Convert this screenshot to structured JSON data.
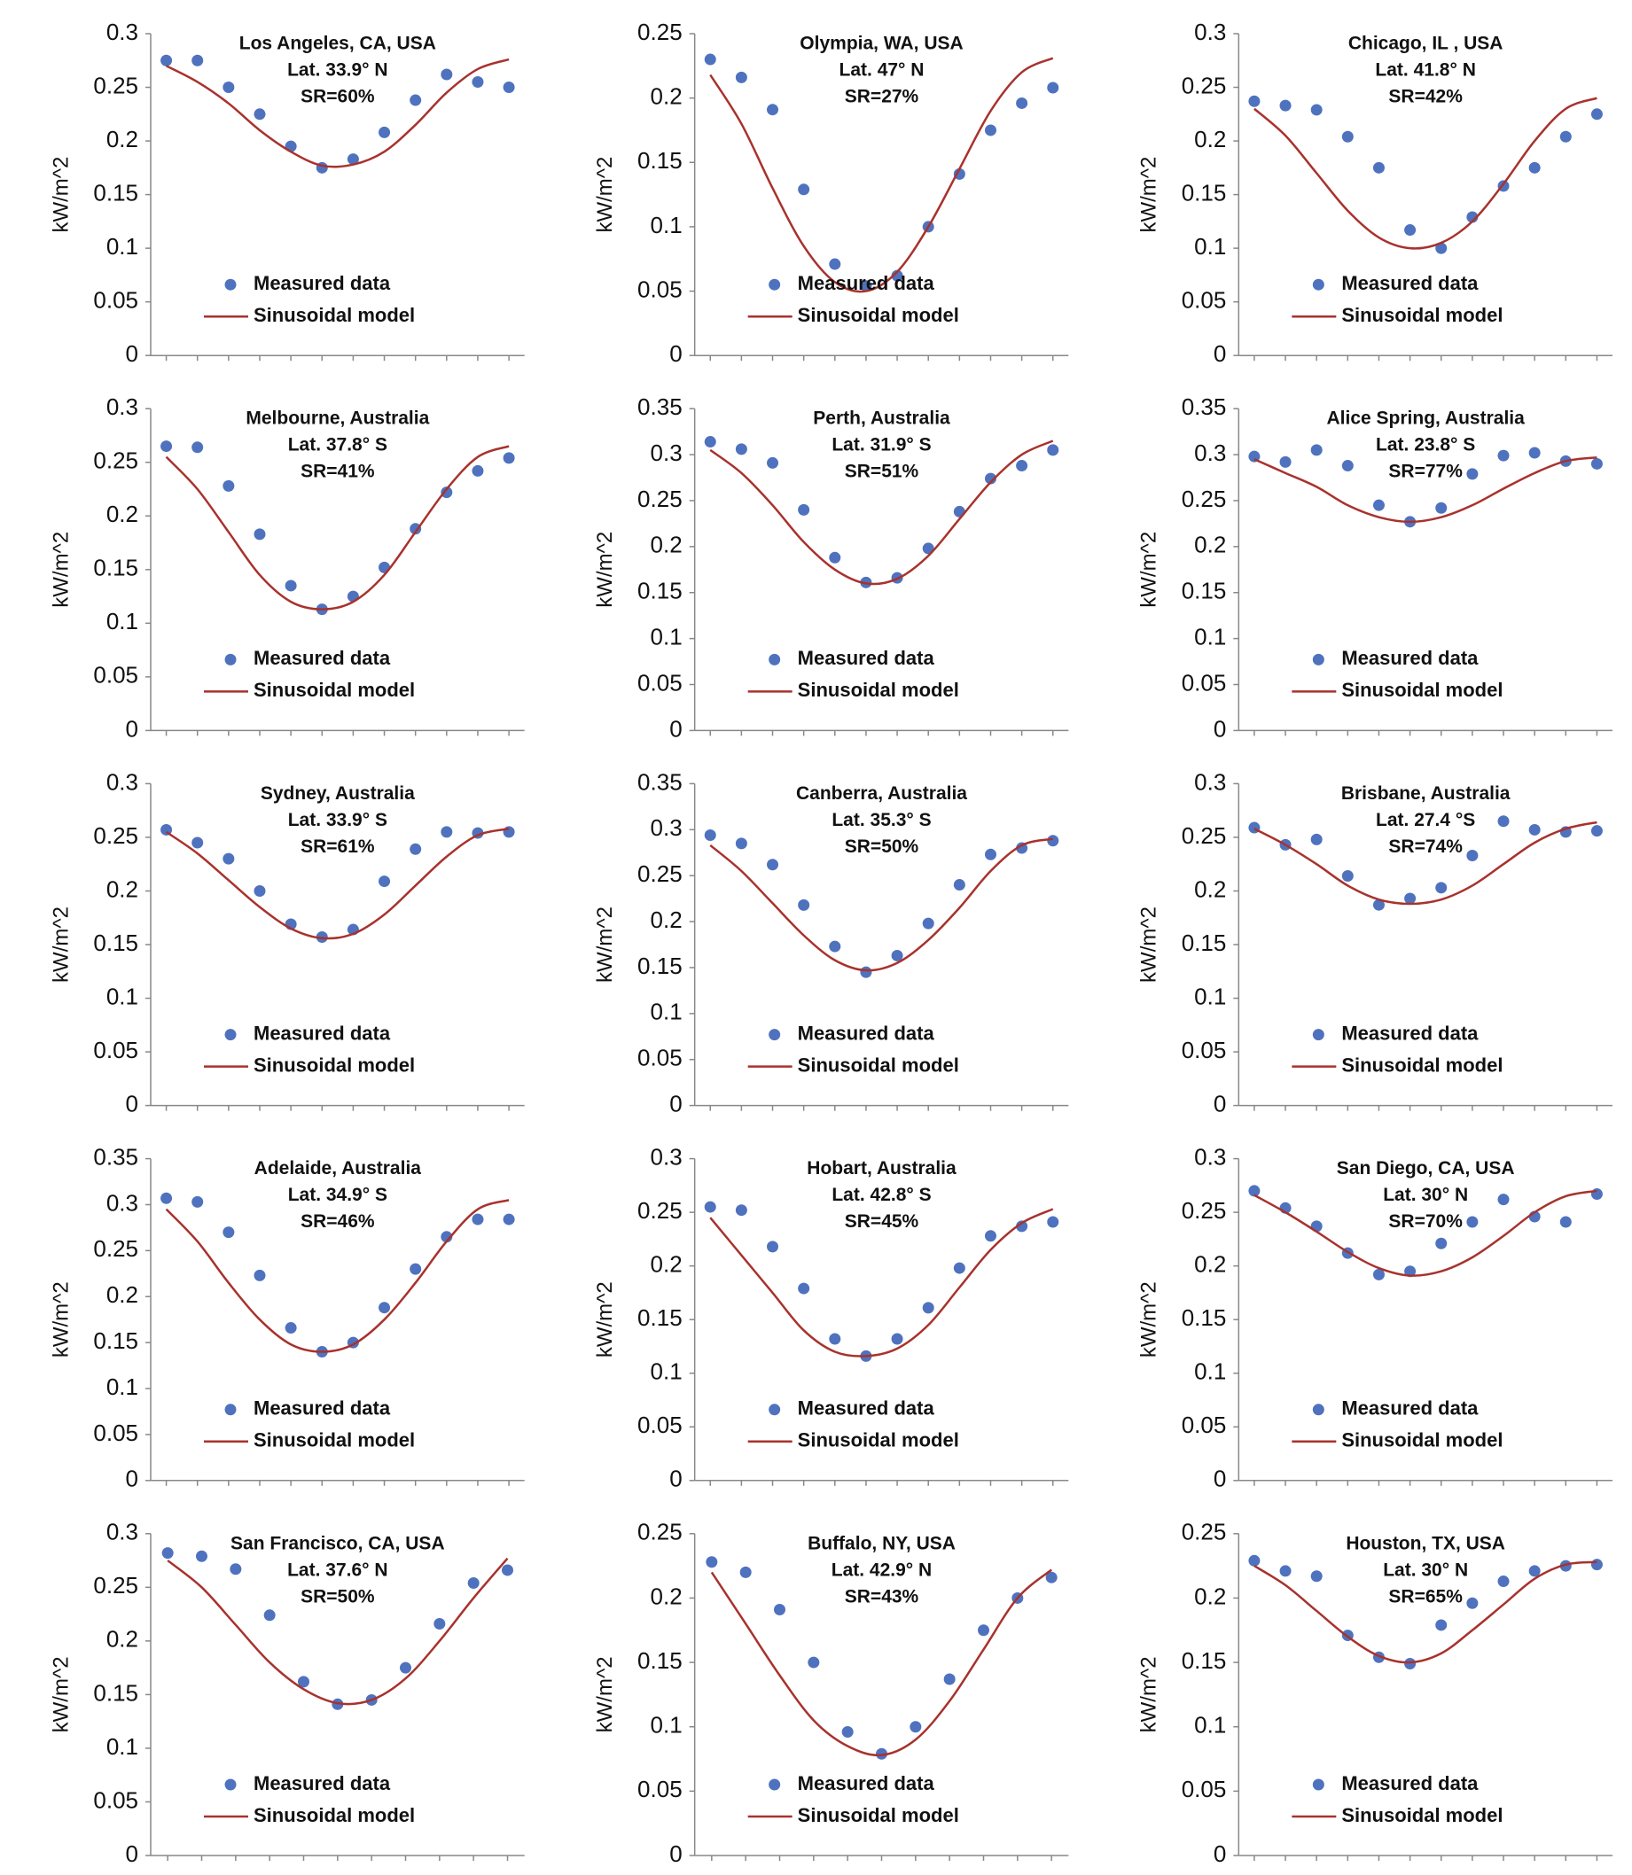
{
  "chart_data": [
    {
      "type": "combo",
      "title": "Los Angeles, CA, USA",
      "annotations": [
        "Lat. 33.9° N",
        "SR=60%"
      ],
      "ylabel": "kW/m^2",
      "categories": [
        null,
        null,
        null,
        null,
        null,
        null,
        null,
        null,
        null,
        null,
        null,
        null
      ],
      "ylim": [
        0,
        0.3
      ],
      "yticks": [
        0,
        0.05,
        0.1,
        0.15,
        0.2,
        0.25,
        0.3
      ],
      "series": [
        {
          "name": "Measured data",
          "type": "scatter",
          "color": "#4f72be",
          "values": [
            0.275,
            0.275,
            0.25,
            0.225,
            0.195,
            0.175,
            0.183,
            0.208,
            0.238,
            0.262,
            0.255,
            0.25
          ]
        },
        {
          "name": "Sinusoidal model",
          "type": "line",
          "color": "#a8322d",
          "values": [
            0.27,
            0.255,
            0.235,
            0.21,
            0.19,
            0.177,
            0.178,
            0.19,
            0.215,
            0.245,
            0.267,
            0.276
          ]
        }
      ]
    },
    {
      "type": "combo",
      "title": "Olympia, WA, USA",
      "annotations": [
        "Lat. 47° N",
        "SR=27%"
      ],
      "ylabel": "kW/m^2",
      "categories": [
        null,
        null,
        null,
        null,
        null,
        null,
        null,
        null,
        null,
        null,
        null,
        null
      ],
      "ylim": [
        0,
        0.25
      ],
      "yticks": [
        0,
        0.05,
        0.1,
        0.15,
        0.2,
        0.25
      ],
      "series": [
        {
          "name": "Measured data",
          "type": "scatter",
          "color": "#4f72be",
          "values": [
            0.23,
            0.216,
            0.191,
            0.129,
            0.071,
            0.054,
            0.062,
            0.1,
            0.141,
            0.175,
            0.196,
            0.208
          ]
        },
        {
          "name": "Sinusoidal model",
          "type": "line",
          "color": "#a8322d",
          "values": [
            0.218,
            0.18,
            0.13,
            0.085,
            0.057,
            0.05,
            0.065,
            0.1,
            0.145,
            0.19,
            0.22,
            0.231
          ]
        }
      ]
    },
    {
      "type": "combo",
      "title": "Chicago, IL , USA",
      "annotations": [
        "Lat. 41.8° N",
        "SR=42%"
      ],
      "ylabel": "kW/m^2",
      "categories": [
        null,
        null,
        null,
        null,
        null,
        null,
        null,
        null,
        null,
        null,
        null,
        null
      ],
      "ylim": [
        0,
        0.3
      ],
      "yticks": [
        0,
        0.05,
        0.1,
        0.15,
        0.2,
        0.25,
        0.3
      ],
      "series": [
        {
          "name": "Measured data",
          "type": "scatter",
          "color": "#4f72be",
          "values": [
            0.237,
            0.233,
            0.229,
            0.204,
            0.175,
            0.117,
            0.1,
            0.129,
            0.158,
            0.175,
            0.204,
            0.225
          ]
        },
        {
          "name": "Sinusoidal model",
          "type": "line",
          "color": "#a8322d",
          "values": [
            0.23,
            0.205,
            0.17,
            0.135,
            0.11,
            0.1,
            0.105,
            0.125,
            0.16,
            0.2,
            0.23,
            0.24
          ]
        }
      ]
    },
    {
      "type": "combo",
      "title": "Melbourne, Australia",
      "annotations": [
        "Lat. 37.8° S",
        "SR=41%"
      ],
      "ylabel": "kW/m^2",
      "categories": [
        null,
        null,
        null,
        null,
        null,
        null,
        null,
        null,
        null,
        null,
        null,
        null
      ],
      "ylim": [
        0,
        0.3
      ],
      "yticks": [
        0,
        0.05,
        0.1,
        0.15,
        0.2,
        0.25,
        0.3
      ],
      "series": [
        {
          "name": "Measured data",
          "type": "scatter",
          "color": "#4f72be",
          "values": [
            0.265,
            0.264,
            0.228,
            0.183,
            0.135,
            0.113,
            0.125,
            0.152,
            0.188,
            0.222,
            0.242,
            0.254
          ]
        },
        {
          "name": "Sinusoidal model",
          "type": "line",
          "color": "#a8322d",
          "values": [
            0.255,
            0.225,
            0.185,
            0.145,
            0.12,
            0.113,
            0.12,
            0.145,
            0.185,
            0.225,
            0.255,
            0.265
          ]
        }
      ]
    },
    {
      "type": "combo",
      "title": "Perth, Australia",
      "annotations": [
        "Lat. 31.9° S",
        "SR=51%"
      ],
      "ylabel": "kW/m^2",
      "categories": [
        null,
        null,
        null,
        null,
        null,
        null,
        null,
        null,
        null,
        null,
        null,
        null
      ],
      "ylim": [
        0,
        0.35
      ],
      "yticks": [
        0,
        0.05,
        0.1,
        0.15,
        0.2,
        0.25,
        0.3,
        0.35
      ],
      "series": [
        {
          "name": "Measured data",
          "type": "scatter",
          "color": "#4f72be",
          "values": [
            0.314,
            0.306,
            0.291,
            0.24,
            0.188,
            0.161,
            0.166,
            0.198,
            0.238,
            0.274,
            0.288,
            0.305
          ]
        },
        {
          "name": "Sinusoidal model",
          "type": "line",
          "color": "#a8322d",
          "values": [
            0.305,
            0.28,
            0.245,
            0.205,
            0.175,
            0.16,
            0.165,
            0.19,
            0.23,
            0.27,
            0.3,
            0.315
          ]
        }
      ]
    },
    {
      "type": "combo",
      "title": "Alice Spring, Australia",
      "annotations": [
        "Lat. 23.8° S",
        "SR=77%"
      ],
      "ylabel": "kW/m^2",
      "categories": [
        null,
        null,
        null,
        null,
        null,
        null,
        null,
        null,
        null,
        null,
        null,
        null
      ],
      "ylim": [
        0,
        0.35
      ],
      "yticks": [
        0,
        0.05,
        0.1,
        0.15,
        0.2,
        0.25,
        0.3,
        0.35
      ],
      "series": [
        {
          "name": "Measured data",
          "type": "scatter",
          "color": "#4f72be",
          "values": [
            0.298,
            0.292,
            0.305,
            0.288,
            0.245,
            0.227,
            0.242,
            0.279,
            0.299,
            0.302,
            0.293,
            0.29
          ]
        },
        {
          "name": "Sinusoidal model",
          "type": "line",
          "color": "#a8322d",
          "values": [
            0.295,
            0.28,
            0.265,
            0.245,
            0.232,
            0.227,
            0.232,
            0.245,
            0.263,
            0.28,
            0.293,
            0.297
          ]
        }
      ]
    },
    {
      "type": "combo",
      "title": "Sydney, Australia",
      "annotations": [
        "Lat. 33.9° S",
        "SR=61%"
      ],
      "ylabel": "kW/m^2",
      "categories": [
        null,
        null,
        null,
        null,
        null,
        null,
        null,
        null,
        null,
        null,
        null,
        null
      ],
      "ylim": [
        0,
        0.3
      ],
      "yticks": [
        0,
        0.05,
        0.1,
        0.15,
        0.2,
        0.25,
        0.3
      ],
      "series": [
        {
          "name": "Measured data",
          "type": "scatter",
          "color": "#4f72be",
          "values": [
            0.257,
            0.245,
            0.23,
            0.2,
            0.169,
            0.157,
            0.164,
            0.209,
            0.239,
            0.255,
            0.254,
            0.255
          ]
        },
        {
          "name": "Sinusoidal model",
          "type": "line",
          "color": "#a8322d",
          "values": [
            0.255,
            0.235,
            0.21,
            0.185,
            0.165,
            0.156,
            0.16,
            0.178,
            0.205,
            0.232,
            0.252,
            0.258
          ]
        }
      ]
    },
    {
      "type": "combo",
      "title": "Canberra, Australia",
      "annotations": [
        "Lat. 35.3° S",
        "SR=50%"
      ],
      "ylabel": "kW/m^2",
      "categories": [
        null,
        null,
        null,
        null,
        null,
        null,
        null,
        null,
        null,
        null,
        null,
        null
      ],
      "ylim": [
        0,
        0.35
      ],
      "yticks": [
        0,
        0.05,
        0.1,
        0.15,
        0.2,
        0.25,
        0.3,
        0.35
      ],
      "series": [
        {
          "name": "Measured data",
          "type": "scatter",
          "color": "#4f72be",
          "values": [
            0.294,
            0.285,
            0.262,
            0.218,
            0.173,
            0.145,
            0.163,
            0.198,
            0.24,
            0.273,
            0.28,
            0.288
          ]
        },
        {
          "name": "Sinusoidal model",
          "type": "line",
          "color": "#a8322d",
          "values": [
            0.283,
            0.255,
            0.22,
            0.185,
            0.158,
            0.147,
            0.155,
            0.18,
            0.215,
            0.255,
            0.283,
            0.29
          ]
        }
      ]
    },
    {
      "type": "combo",
      "title": "Brisbane, Australia",
      "annotations": [
        "Lat. 27.4 °S",
        "SR=74%"
      ],
      "ylabel": "kW/m^2",
      "categories": [
        null,
        null,
        null,
        null,
        null,
        null,
        null,
        null,
        null,
        null,
        null,
        null
      ],
      "ylim": [
        0,
        0.3
      ],
      "yticks": [
        0,
        0.05,
        0.1,
        0.15,
        0.2,
        0.25,
        0.3
      ],
      "series": [
        {
          "name": "Measured data",
          "type": "scatter",
          "color": "#4f72be",
          "values": [
            0.259,
            0.243,
            0.248,
            0.214,
            0.187,
            0.193,
            0.203,
            0.233,
            0.265,
            0.257,
            0.255,
            0.256
          ]
        },
        {
          "name": "Sinusoidal model",
          "type": "line",
          "color": "#a8322d",
          "values": [
            0.258,
            0.243,
            0.225,
            0.205,
            0.192,
            0.188,
            0.192,
            0.205,
            0.225,
            0.245,
            0.258,
            0.264
          ]
        }
      ]
    },
    {
      "type": "combo",
      "title": "Adelaide, Australia",
      "annotations": [
        "Lat. 34.9° S",
        "SR=46%"
      ],
      "ylabel": "kW/m^2",
      "categories": [
        null,
        null,
        null,
        null,
        null,
        null,
        null,
        null,
        null,
        null,
        null,
        null
      ],
      "ylim": [
        0,
        0.35
      ],
      "yticks": [
        0,
        0.05,
        0.1,
        0.15,
        0.2,
        0.25,
        0.3,
        0.35
      ],
      "series": [
        {
          "name": "Measured data",
          "type": "scatter",
          "color": "#4f72be",
          "values": [
            0.307,
            0.303,
            0.27,
            0.223,
            0.166,
            0.14,
            0.15,
            0.188,
            0.23,
            0.265,
            0.284,
            0.284
          ]
        },
        {
          "name": "Sinusoidal model",
          "type": "line",
          "color": "#a8322d",
          "values": [
            0.295,
            0.26,
            0.215,
            0.175,
            0.148,
            0.14,
            0.148,
            0.175,
            0.215,
            0.26,
            0.295,
            0.305
          ]
        }
      ]
    },
    {
      "type": "combo",
      "title": "Hobart, Australia",
      "annotations": [
        "Lat. 42.8° S",
        "SR=45%"
      ],
      "ylabel": "kW/m^2",
      "categories": [
        null,
        null,
        null,
        null,
        null,
        null,
        null,
        null,
        null,
        null,
        null,
        null
      ],
      "ylim": [
        0,
        0.3
      ],
      "yticks": [
        0,
        0.05,
        0.1,
        0.15,
        0.2,
        0.25,
        0.3
      ],
      "series": [
        {
          "name": "Measured data",
          "type": "scatter",
          "color": "#4f72be",
          "values": [
            0.255,
            0.252,
            0.218,
            0.179,
            0.132,
            0.116,
            0.132,
            0.161,
            0.198,
            0.228,
            0.237,
            0.241
          ]
        },
        {
          "name": "Sinusoidal model",
          "type": "line",
          "color": "#a8322d",
          "values": [
            0.245,
            0.21,
            0.175,
            0.14,
            0.12,
            0.116,
            0.123,
            0.145,
            0.18,
            0.215,
            0.24,
            0.253
          ]
        }
      ]
    },
    {
      "type": "combo",
      "title": "San Diego, CA, USA",
      "annotations": [
        "Lat. 30° N",
        "SR=70%"
      ],
      "ylabel": "kW/m^2",
      "categories": [
        null,
        null,
        null,
        null,
        null,
        null,
        null,
        null,
        null,
        null,
        null,
        null
      ],
      "ylim": [
        0,
        0.3
      ],
      "yticks": [
        0,
        0.05,
        0.1,
        0.15,
        0.2,
        0.25,
        0.3
      ],
      "series": [
        {
          "name": "Measured data",
          "type": "scatter",
          "color": "#4f72be",
          "values": [
            0.27,
            0.254,
            0.237,
            0.212,
            0.192,
            0.195,
            0.221,
            0.241,
            0.262,
            0.246,
            0.241,
            0.267
          ]
        },
        {
          "name": "Sinusoidal model",
          "type": "line",
          "color": "#a8322d",
          "values": [
            0.266,
            0.25,
            0.232,
            0.213,
            0.198,
            0.191,
            0.195,
            0.208,
            0.228,
            0.25,
            0.265,
            0.27
          ]
        }
      ]
    },
    {
      "type": "combo",
      "title": "San Francisco, CA, USA",
      "annotations": [
        "Lat. 37.6° N",
        "SR=50%"
      ],
      "ylabel": "kW/m^2",
      "categories": [
        null,
        null,
        null,
        null,
        null,
        null,
        null,
        null,
        null,
        null,
        null
      ],
      "ylim": [
        0,
        0.3
      ],
      "yticks": [
        0,
        0.05,
        0.1,
        0.15,
        0.2,
        0.25,
        0.3
      ],
      "series": [
        {
          "name": "Measured data",
          "type": "scatter",
          "color": "#4f72be",
          "values": [
            0.282,
            0.279,
            0.267,
            0.224,
            0.162,
            0.141,
            0.145,
            0.175,
            0.216,
            0.254,
            0.266
          ]
        },
        {
          "name": "Sinusoidal model",
          "type": "line",
          "color": "#a8322d",
          "values": [
            0.275,
            0.25,
            0.215,
            0.18,
            0.155,
            0.142,
            0.145,
            0.165,
            0.2,
            0.24,
            0.277
          ]
        }
      ]
    },
    {
      "type": "combo",
      "title": "Buffalo, NY, USA",
      "annotations": [
        "Lat. 42.9° N",
        "SR=43%"
      ],
      "ylabel": "kW/m^2",
      "categories": [
        null,
        null,
        null,
        null,
        null,
        null,
        null,
        null,
        null,
        null,
        null
      ],
      "ylim": [
        0,
        0.25
      ],
      "yticks": [
        0,
        0.05,
        0.1,
        0.15,
        0.2,
        0.25
      ],
      "series": [
        {
          "name": "Measured data",
          "type": "scatter",
          "color": "#4f72be",
          "values": [
            0.228,
            0.22,
            0.191,
            0.15,
            0.096,
            0.079,
            0.1,
            0.137,
            0.175,
            0.2,
            0.216
          ]
        },
        {
          "name": "Sinusoidal model",
          "type": "line",
          "color": "#a8322d",
          "values": [
            0.22,
            0.18,
            0.14,
            0.105,
            0.085,
            0.078,
            0.09,
            0.12,
            0.16,
            0.2,
            0.222
          ]
        }
      ]
    },
    {
      "type": "combo",
      "title": "Houston, TX, USA",
      "annotations": [
        "Lat. 30° N",
        "SR=65%"
      ],
      "ylabel": "kW/m^2",
      "categories": [
        null,
        null,
        null,
        null,
        null,
        null,
        null,
        null,
        null,
        null,
        null,
        null
      ],
      "ylim": [
        0,
        0.25
      ],
      "yticks": [
        0,
        0.05,
        0.1,
        0.15,
        0.2,
        0.25
      ],
      "series": [
        {
          "name": "Measured data",
          "type": "scatter",
          "color": "#4f72be",
          "values": [
            0.229,
            0.221,
            0.217,
            0.171,
            0.154,
            0.149,
            0.179,
            0.196,
            0.213,
            0.221,
            0.225,
            0.226
          ]
        },
        {
          "name": "Sinusoidal model",
          "type": "line",
          "color": "#a8322d",
          "values": [
            0.225,
            0.21,
            0.19,
            0.17,
            0.155,
            0.15,
            0.157,
            0.175,
            0.195,
            0.215,
            0.226,
            0.228
          ]
        }
      ]
    }
  ]
}
